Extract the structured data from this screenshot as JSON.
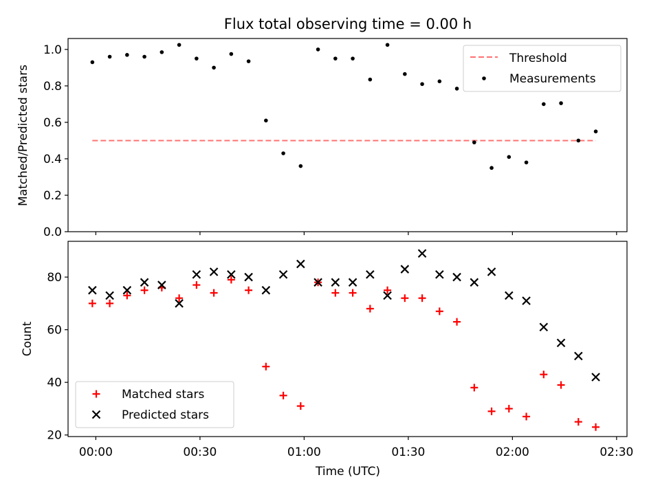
{
  "chart_data": [
    {
      "type": "scatter",
      "title": "Flux total observing time = 0.00 h",
      "xlabel": "",
      "ylabel": "Matched/Predicted stars",
      "ylim": [
        0.0,
        1.06
      ],
      "yticks": [
        "0.0",
        "0.2",
        "0.4",
        "0.6",
        "0.8",
        "1.0"
      ],
      "ytick_values": [
        0.0,
        0.2,
        0.4,
        0.6,
        0.8,
        1.0
      ],
      "grid": false,
      "legend_position": "top-right",
      "threshold": {
        "name": "Threshold",
        "value": 0.5,
        "x_start": "23:59",
        "x_end": "02:24",
        "color": "#ff7070"
      },
      "series": [
        {
          "name": "Measurements",
          "color": "#000000",
          "marker": "dot",
          "x": [
            "23:59",
            "00:04",
            "00:09",
            "00:14",
            "00:19",
            "00:24",
            "00:29",
            "00:34",
            "00:39",
            "00:44",
            "00:49",
            "00:54",
            "00:59",
            "01:04",
            "01:09",
            "01:14",
            "01:19",
            "01:24",
            "01:29",
            "01:34",
            "01:39",
            "01:44",
            "01:49",
            "01:54",
            "01:59",
            "02:04",
            "02:09",
            "02:14",
            "02:19",
            "02:24"
          ],
          "values": [
            0.93,
            0.96,
            0.97,
            0.96,
            0.985,
            1.025,
            0.95,
            0.9,
            0.975,
            0.935,
            0.61,
            0.43,
            0.36,
            1.0,
            0.95,
            0.95,
            0.835,
            1.025,
            0.865,
            0.81,
            0.825,
            0.785,
            0.49,
            0.35,
            0.41,
            0.38,
            0.7,
            0.705,
            0.5,
            0.55
          ]
        }
      ]
    },
    {
      "type": "scatter",
      "title": "",
      "xlabel": "Time (UTC)",
      "ylabel": "Count",
      "ylim": [
        19.4,
        93.6
      ],
      "yticks": [
        "20",
        "40",
        "60",
        "80"
      ],
      "ytick_values": [
        20,
        40,
        60,
        80
      ],
      "xlim": [
        "23:52",
        "02:33"
      ],
      "xticks": [
        "00:00",
        "00:30",
        "01:00",
        "01:30",
        "02:00",
        "02:30"
      ],
      "grid": false,
      "legend_position": "bottom-left",
      "series": [
        {
          "name": "Matched stars",
          "color": "#ff0000",
          "marker": "plus",
          "x": [
            "23:59",
            "00:04",
            "00:09",
            "00:14",
            "00:19",
            "00:24",
            "00:29",
            "00:34",
            "00:39",
            "00:44",
            "00:49",
            "00:54",
            "00:59",
            "01:04",
            "01:09",
            "01:14",
            "01:19",
            "01:24",
            "01:29",
            "01:34",
            "01:39",
            "01:44",
            "01:49",
            "01:54",
            "01:59",
            "02:04",
            "02:09",
            "02:14",
            "02:19",
            "02:24"
          ],
          "values": [
            70,
            70,
            73,
            75,
            76,
            72,
            77,
            74,
            79,
            75,
            46,
            35,
            31,
            78,
            74,
            74,
            68,
            75,
            72,
            72,
            67,
            63,
            38,
            29,
            30,
            27,
            43,
            39,
            25,
            23
          ]
        },
        {
          "name": "Predicted stars",
          "color": "#000000",
          "marker": "x",
          "x": [
            "23:59",
            "00:04",
            "00:09",
            "00:14",
            "00:19",
            "00:24",
            "00:29",
            "00:34",
            "00:39",
            "00:44",
            "00:49",
            "00:54",
            "00:59",
            "01:04",
            "01:09",
            "01:14",
            "01:19",
            "01:24",
            "01:29",
            "01:34",
            "01:39",
            "01:44",
            "01:49",
            "01:54",
            "01:59",
            "02:04",
            "02:09",
            "02:14",
            "02:19",
            "02:24"
          ],
          "values": [
            75,
            73,
            75,
            78,
            77,
            70,
            81,
            82,
            81,
            80,
            75,
            81,
            85,
            78,
            78,
            78,
            81,
            73,
            83,
            89,
            81,
            80,
            78,
            82,
            73,
            71,
            61,
            55,
            50,
            42
          ]
        }
      ]
    }
  ]
}
